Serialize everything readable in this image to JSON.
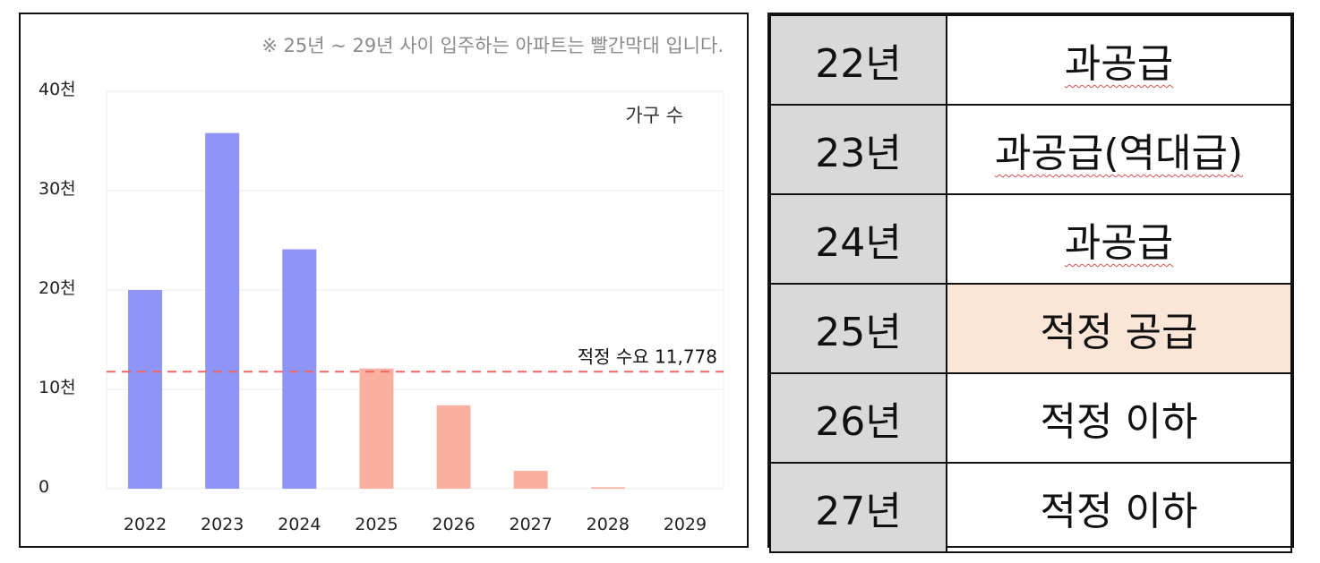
{
  "chart_data": {
    "type": "bar",
    "note": "※ 25년 ~ 29년 사이 입주하는 아파트는 빨간막대 입니다.",
    "legend_label": "가구 수",
    "categories": [
      "2022",
      "2023",
      "2024",
      "2025",
      "2026",
      "2027",
      "2028",
      "2029"
    ],
    "values": [
      20000,
      35800,
      24100,
      12100,
      8400,
      1800,
      150,
      0
    ],
    "bar_colors": [
      "#8e95f6",
      "#8e95f6",
      "#8e95f6",
      "#f9b0a0",
      "#f9b0a0",
      "#f9b0a0",
      "#f9b0a0",
      "#f9b0a0"
    ],
    "yticks": [
      0,
      10000,
      20000,
      30000,
      40000
    ],
    "ytick_labels": [
      "0",
      "10천",
      "20천",
      "30천",
      "40천"
    ],
    "ylim": [
      0,
      40000
    ],
    "grid": true,
    "reference_line": {
      "value": 11778,
      "label": "적정 수요 11,778",
      "color": "#ee6666"
    }
  },
  "table": {
    "rows": [
      {
        "year": "22년",
        "status": "과공급",
        "highlight": false,
        "spellcheck": true
      },
      {
        "year": "23년",
        "status": "과공급(역대급)",
        "highlight": false,
        "spellcheck": true
      },
      {
        "year": "24년",
        "status": "과공급",
        "highlight": false,
        "spellcheck": true
      },
      {
        "year": "25년",
        "status": "적정 공급",
        "highlight": true,
        "spellcheck": false
      },
      {
        "year": "26년",
        "status": "적정 이하",
        "highlight": false,
        "spellcheck": false
      },
      {
        "year": "27년",
        "status": "적정 이하",
        "highlight": false,
        "spellcheck": false
      }
    ]
  }
}
